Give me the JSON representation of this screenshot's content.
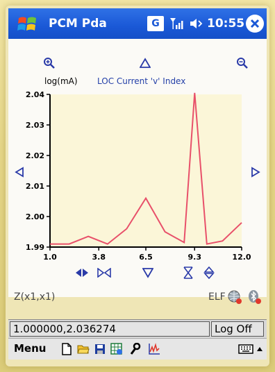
{
  "window": {
    "title": "PCM Pda",
    "clock": "10:55",
    "status_g": "G"
  },
  "chart": {
    "y_unit": "log(mA)",
    "title": "LOC Current 'v' Index"
  },
  "readouts": {
    "z_label": "Z(x1,x1)",
    "elf_label": "ELF",
    "coordinates": "1.000000,2.036274",
    "log_status": "Log Off"
  },
  "menubar": {
    "menu_label": "Menu"
  },
  "icons": [
    "windows-logo-icon",
    "g-status-icon",
    "signal-icon",
    "volume-icon",
    "close-icon",
    "zoom-in-icon",
    "pan-up-icon",
    "zoom-out-icon",
    "pan-left-icon",
    "pan-right-icon",
    "x-expand-icon",
    "x-contract-icon",
    "pan-down-icon",
    "y-contract-icon",
    "y-expand-icon",
    "globe-icon",
    "bluetooth-icon",
    "new-file-icon",
    "open-folder-icon",
    "save-icon",
    "spreadsheet-icon",
    "wrench-icon",
    "chart-icon",
    "keyboard-icon",
    "menu-arrow-icon"
  ],
  "colors": {
    "titlebar": "#1a58d6",
    "plot_background": "#fbf6d8",
    "series_line": "#e8506a",
    "title_text": "#2440a8"
  },
  "chart_data": {
    "type": "line",
    "title": "LOC Current 'v' Index",
    "xlabel": "",
    "ylabel": "log(mA)",
    "xlim": [
      1.0,
      12.0
    ],
    "ylim": [
      1.99,
      2.04
    ],
    "xticks": [
      "1.0",
      "3.8",
      "6.5",
      "9.3",
      "12.0"
    ],
    "yticks": [
      "1.99",
      "2.00",
      "2.01",
      "2.02",
      "2.03",
      "2.04"
    ],
    "grid": false,
    "x": [
      1.0,
      2.1,
      3.2,
      4.3,
      5.4,
      6.5,
      7.6,
      8.7,
      9.3,
      10.0,
      10.9,
      12.0
    ],
    "y": [
      1.991,
      1.991,
      1.9935,
      1.991,
      1.996,
      2.006,
      1.995,
      1.9915,
      2.0405,
      1.991,
      1.992,
      1.998
    ]
  }
}
